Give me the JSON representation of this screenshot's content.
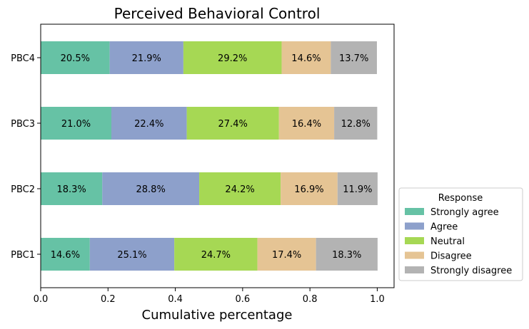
{
  "chart_data": {
    "type": "bar",
    "orientation": "horizontal",
    "stacked": true,
    "title": "Perceived Behavioral Control",
    "xlabel": "Cumulative percentage",
    "ylabel": "",
    "xlim": [
      0,
      1.05
    ],
    "xticks": [
      0.0,
      0.2,
      0.4,
      0.6,
      0.8,
      1.0
    ],
    "xtick_labels": [
      "0.0",
      "0.2",
      "0.4",
      "0.6",
      "0.8",
      "1.0"
    ],
    "categories": [
      "PBC1",
      "PBC2",
      "PBC3",
      "PBC4"
    ],
    "grid": false,
    "legend": {
      "title": "Response",
      "placement": "right"
    },
    "series": [
      {
        "name": "Strongly agree",
        "color": "#66c2a5",
        "values": [
          0.146,
          0.183,
          0.21,
          0.205
        ],
        "labels": [
          "14.6%",
          "18.3%",
          "21.0%",
          "20.5%"
        ]
      },
      {
        "name": "Agree",
        "color": "#8da0cb",
        "values": [
          0.251,
          0.288,
          0.224,
          0.219
        ],
        "labels": [
          "25.1%",
          "28.8%",
          "22.4%",
          "21.9%"
        ]
      },
      {
        "name": "Neutral",
        "color": "#a6d854",
        "values": [
          0.247,
          0.242,
          0.274,
          0.292
        ],
        "labels": [
          "24.7%",
          "24.2%",
          "27.4%",
          "29.2%"
        ]
      },
      {
        "name": "Disagree",
        "color": "#e5c494",
        "values": [
          0.174,
          0.169,
          0.164,
          0.146
        ],
        "labels": [
          "17.4%",
          "16.9%",
          "16.4%",
          "14.6%"
        ]
      },
      {
        "name": "Strongly disagree",
        "color": "#b3b3b3",
        "values": [
          0.183,
          0.119,
          0.128,
          0.137
        ],
        "labels": [
          "18.3%",
          "11.9%",
          "12.8%",
          "13.7%"
        ]
      }
    ]
  }
}
